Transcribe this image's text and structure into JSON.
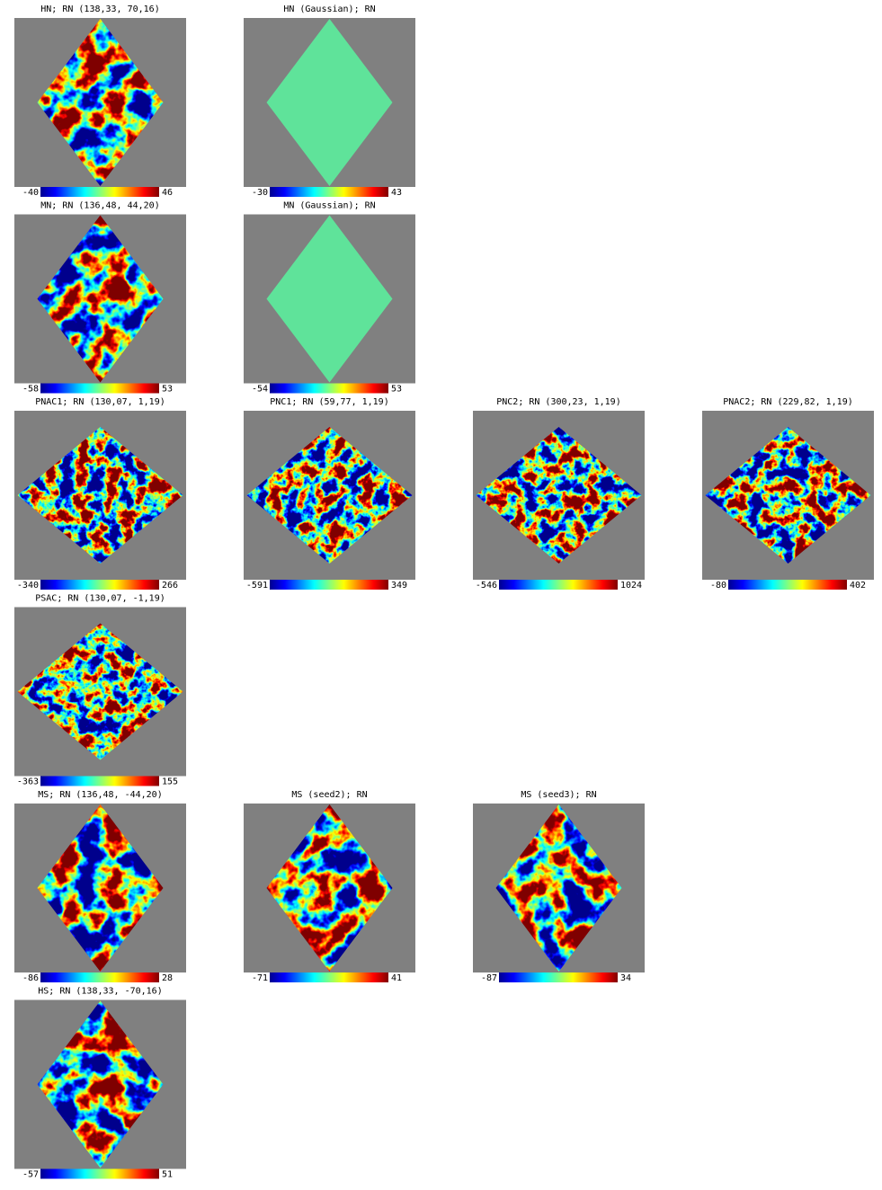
{
  "rows": [
    [
      {
        "title": "HN; RN (138,33, 70,16)",
        "min": -40,
        "max": 46
      },
      {
        "title": "HN (Gaussian); RN",
        "min": -30,
        "max": 43
      }
    ],
    [
      {
        "title": "MN; RN (136,48, 44,20)",
        "min": -58,
        "max": 53
      },
      {
        "title": "MN (Gaussian); RN",
        "min": -54,
        "max": 53
      }
    ],
    [
      {
        "title": "PNAC1; RN (130,07, 1,19)",
        "min": -340,
        "max": 266
      },
      {
        "title": "PNC1; RN (59,77, 1,19)",
        "min": -591,
        "max": 349
      },
      {
        "title": "PNC2; RN (300,23, 1,19)",
        "min": -546,
        "max": 1024
      },
      {
        "title": "PNAC2; RN (229,82, 1,19)",
        "min": -80,
        "max": 402
      }
    ],
    [
      {
        "title": "PSAC; RN (130,07, -1,19)",
        "min": -363,
        "max": 155
      }
    ],
    [
      {
        "title": "MS; RN (136,48, -44,20)",
        "min": -86,
        "max": 28
      },
      {
        "title": "MS (seed2); RN",
        "min": -71,
        "max": 41
      },
      {
        "title": "MS (seed3); RN",
        "min": -87,
        "max": 34
      }
    ],
    [
      {
        "title": "HS; RN (138,33, -70,16)",
        "min": -57,
        "max": 51
      }
    ]
  ]
}
